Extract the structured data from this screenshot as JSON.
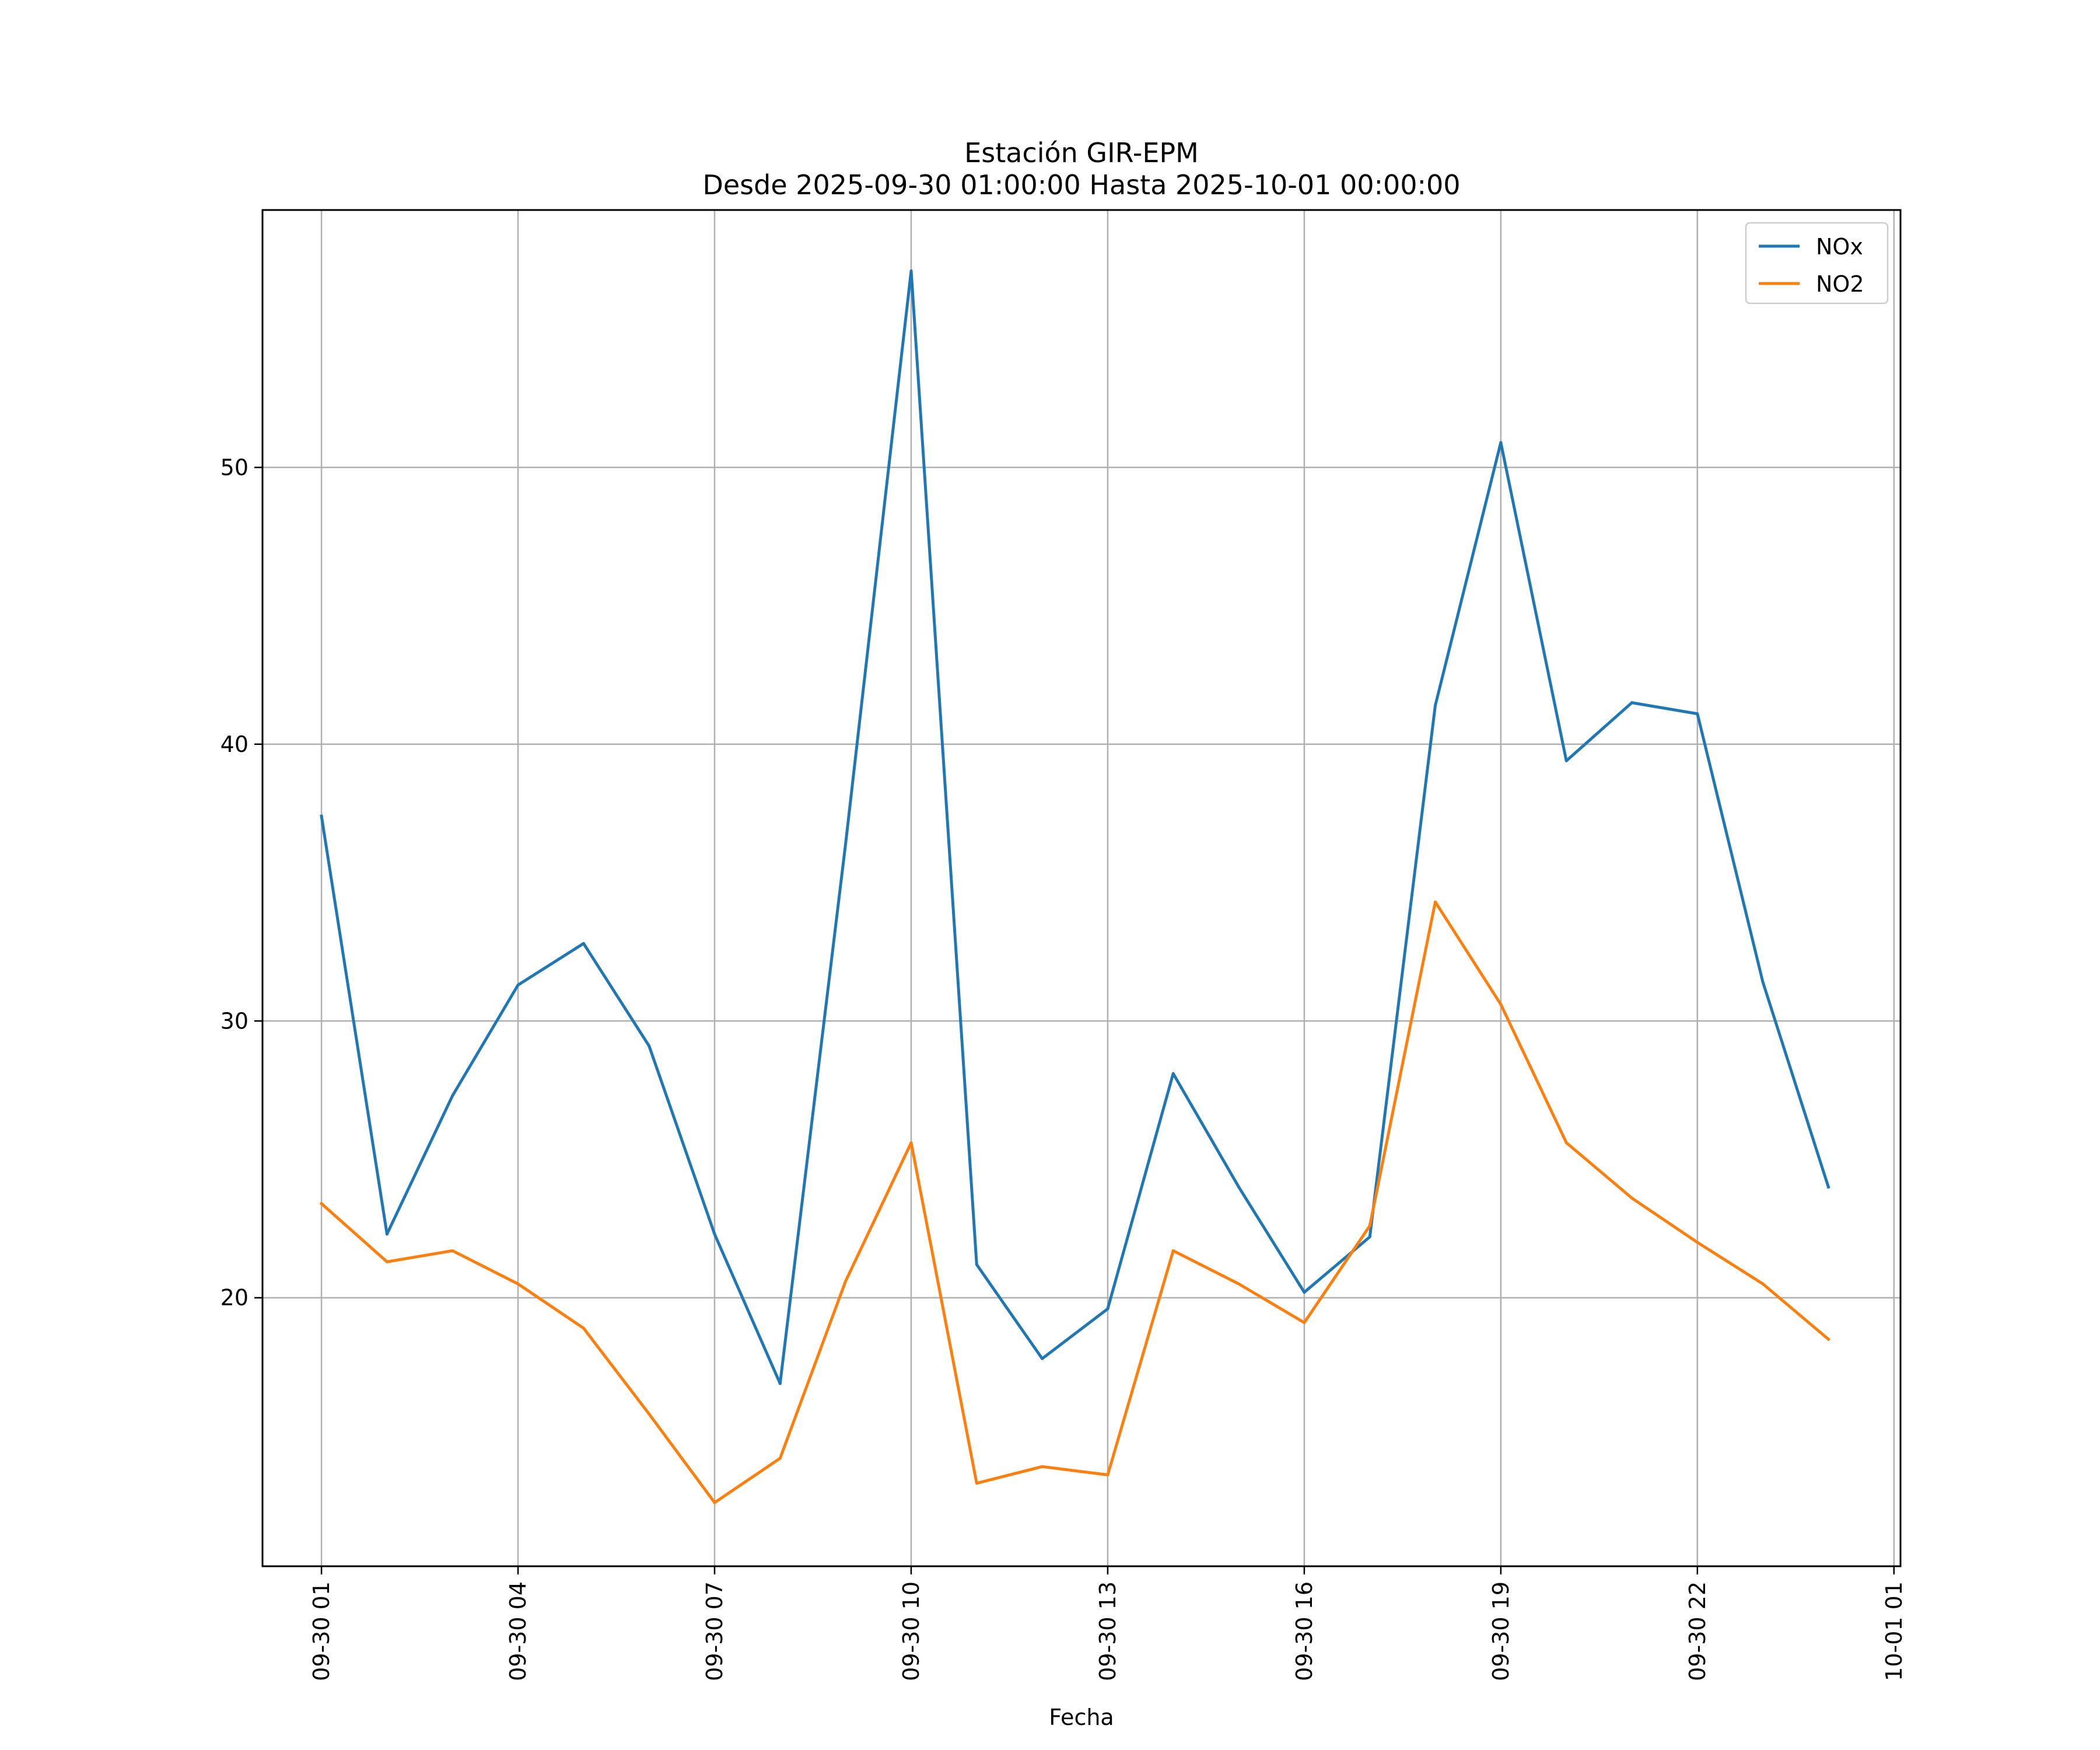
{
  "chart_data": {
    "type": "line",
    "title": "Estación GIR-EPM",
    "subtitle": "Desde 2025-09-30 01:00:00 Hasta 2025-10-01 00:00:00",
    "xlabel": "Fecha",
    "ylabel": "",
    "x": [
      "2025-09-30 01:00",
      "2025-09-30 02:00",
      "2025-09-30 03:00",
      "2025-09-30 04:00",
      "2025-09-30 05:00",
      "2025-09-30 06:00",
      "2025-09-30 07:00",
      "2025-09-30 08:00",
      "2025-09-30 09:00",
      "2025-09-30 10:00",
      "2025-09-30 11:00",
      "2025-09-30 12:00",
      "2025-09-30 13:00",
      "2025-09-30 14:00",
      "2025-09-30 15:00",
      "2025-09-30 16:00",
      "2025-09-30 17:00",
      "2025-09-30 18:00",
      "2025-09-30 19:00",
      "2025-09-30 20:00",
      "2025-09-30 21:00",
      "2025-09-30 22:00",
      "2025-09-30 23:00",
      "2025-10-01 00:00"
    ],
    "x_tick_labels": [
      "09-30 01",
      "09-30 04",
      "09-30 07",
      "09-30 10",
      "09-30 13",
      "09-30 16",
      "09-30 19",
      "09-30 22",
      "10-01 01"
    ],
    "x_tick_rotation": "vertical",
    "y_ticks": [
      20,
      30,
      40,
      50
    ],
    "ylim": [
      10.3,
      59.3
    ],
    "xlim": [
      "2025-09-30 00:06",
      "2025-10-01 01:06"
    ],
    "grid": true,
    "legend_position": "top-right",
    "series": [
      {
        "name": "NOx",
        "color": "#1f77b4",
        "values": [
          37.4,
          22.3,
          27.3,
          31.3,
          32.8,
          29.1,
          22.3,
          16.9,
          36.4,
          57.1,
          21.2,
          17.8,
          19.6,
          28.1,
          24.0,
          20.2,
          22.2,
          41.4,
          50.9,
          39.4,
          41.5,
          41.1,
          31.4,
          24.0
        ]
      },
      {
        "name": "NO2",
        "color": "#ff7f0e",
        "values": [
          23.4,
          21.3,
          21.7,
          20.5,
          18.9,
          15.8,
          12.6,
          14.2,
          20.6,
          25.6,
          13.3,
          13.9,
          13.6,
          21.7,
          20.5,
          19.1,
          22.6,
          34.3,
          30.6,
          25.6,
          23.6,
          22.0,
          20.5,
          18.5
        ]
      }
    ]
  }
}
